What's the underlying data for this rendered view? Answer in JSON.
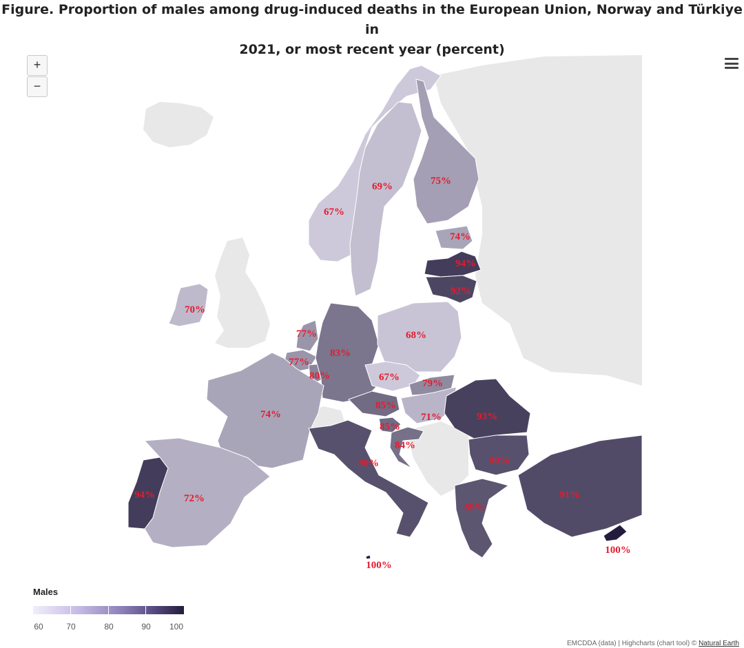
{
  "title": {
    "line1": "Figure. Proportion of males among drug-induced deaths in the European Union, Norway and Türkiye in",
    "line2": "2021, or most recent year (percent)"
  },
  "controls": {
    "zoom_in": "+",
    "zoom_out": "−",
    "menu_icon": "hamburger-menu-icon"
  },
  "legend": {
    "title": "Males",
    "ticks": [
      "60",
      "70",
      "80",
      "90",
      "100"
    ],
    "min": 60,
    "max": 100
  },
  "colors": {
    "no_data": "#e8e8e8",
    "label": "#e41b2e",
    "scale_low": "#f1eefb",
    "scale_high": "#241c3d"
  },
  "chart_data": {
    "type": "choropleth",
    "metric": "Males",
    "unit": "percent",
    "countries": [
      {
        "name": "Norway",
        "value": 67,
        "label": "67%"
      },
      {
        "name": "Sweden",
        "value": 69,
        "label": "69%"
      },
      {
        "name": "Finland",
        "value": 75,
        "label": "75%"
      },
      {
        "name": "Estonia",
        "value": 74,
        "label": "74%"
      },
      {
        "name": "Latvia",
        "value": 94,
        "label": "94%"
      },
      {
        "name": "Lithuania",
        "value": 92,
        "label": "92%"
      },
      {
        "name": "Ireland",
        "value": 70,
        "label": "70%"
      },
      {
        "name": "Netherlands",
        "value": 77,
        "label": "77%"
      },
      {
        "name": "Belgium",
        "value": 77,
        "label": "77%"
      },
      {
        "name": "Luxembourg",
        "value": 80,
        "label": "80%"
      },
      {
        "name": "Germany",
        "value": 83,
        "label": "83%"
      },
      {
        "name": "Poland",
        "value": 68,
        "label": "68%"
      },
      {
        "name": "Czechia",
        "value": 67,
        "label": "67%"
      },
      {
        "name": "Slovakia",
        "value": 79,
        "label": "79%"
      },
      {
        "name": "Austria",
        "value": 85,
        "label": "85%"
      },
      {
        "name": "Slovenia",
        "value": 85,
        "label": "85%"
      },
      {
        "name": "Hungary",
        "value": 71,
        "label": "71%"
      },
      {
        "name": "Croatia",
        "value": 84,
        "label": "84%"
      },
      {
        "name": "Romania",
        "value": 93,
        "label": "93%"
      },
      {
        "name": "Bulgaria",
        "value": 90,
        "label": "90%"
      },
      {
        "name": "France",
        "value": 74,
        "label": "74%"
      },
      {
        "name": "Italy",
        "value": 90,
        "label": "90%"
      },
      {
        "name": "Portugal",
        "value": 94,
        "label": "94%"
      },
      {
        "name": "Spain",
        "value": 72,
        "label": "72%"
      },
      {
        "name": "Greece",
        "value": 89,
        "label": "89%"
      },
      {
        "name": "Türkiye",
        "value": 91,
        "label": "91%"
      },
      {
        "name": "Cyprus",
        "value": 100,
        "label": "100%"
      },
      {
        "name": "Malta",
        "value": 100,
        "label": "100%"
      }
    ]
  },
  "credits": {
    "text": "EMCDDA (data) | Highcharts (chart tool) © ",
    "link": "Natural Earth"
  }
}
